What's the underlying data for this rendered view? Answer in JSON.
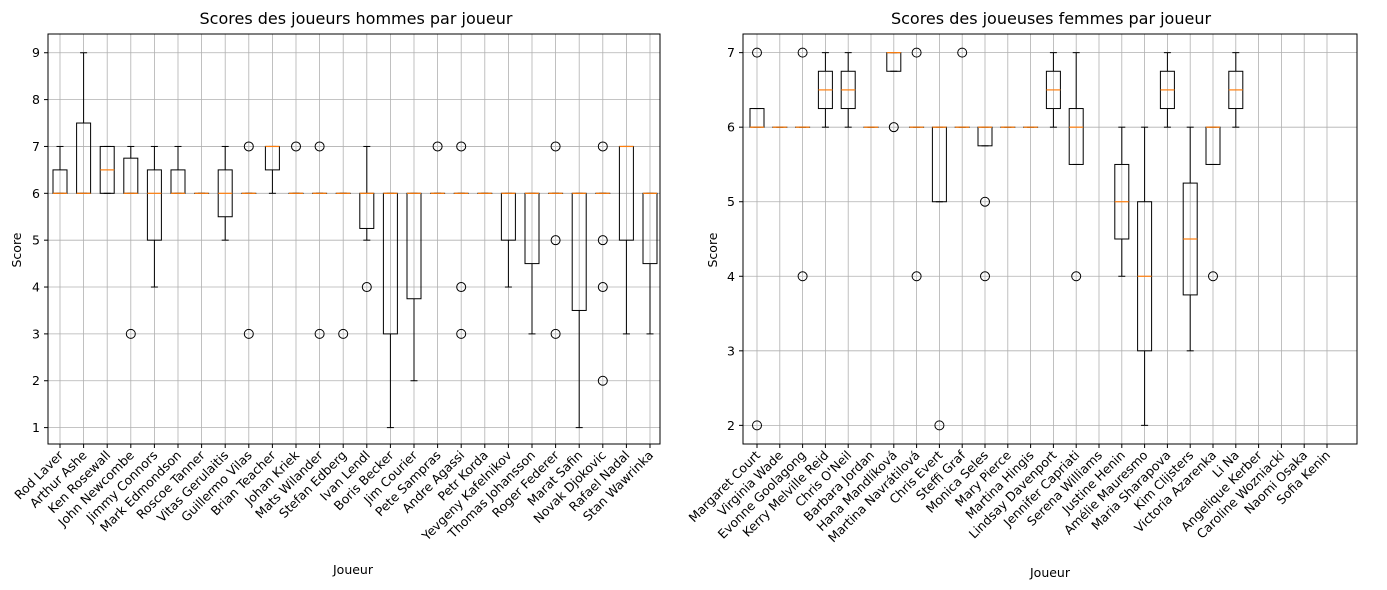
{
  "chart_data": [
    {
      "type": "box",
      "title": "Scores des joueurs hommes par joueur",
      "xlabel": "Joueur",
      "ylabel": "Score",
      "ylim": [
        0.65,
        9.4
      ],
      "yticks": [
        1,
        2,
        3,
        4,
        5,
        6,
        7,
        8,
        9
      ],
      "grid": true,
      "players": [
        {
          "name": "Rod Laver",
          "q1": 6,
          "med": 6,
          "q3": 6.5,
          "wlo": 6,
          "whi": 7,
          "fliers": []
        },
        {
          "name": "Arthur Ashe",
          "q1": 6,
          "med": 6,
          "q3": 7.5,
          "wlo": 6,
          "whi": 9,
          "fliers": []
        },
        {
          "name": "Ken Rosewall",
          "q1": 6,
          "med": 6.5,
          "q3": 7,
          "wlo": 6,
          "whi": 7,
          "fliers": []
        },
        {
          "name": "John Newcombe",
          "q1": 6,
          "med": 6,
          "q3": 6.75,
          "wlo": 6,
          "whi": 7,
          "fliers": [
            3
          ]
        },
        {
          "name": "Jimmy Connors",
          "q1": 5,
          "med": 6,
          "q3": 6.5,
          "wlo": 4,
          "whi": 7,
          "fliers": []
        },
        {
          "name": "Mark Edmondson",
          "q1": 6,
          "med": 6,
          "q3": 6.5,
          "wlo": 6,
          "whi": 7,
          "fliers": []
        },
        {
          "name": "Roscoe Tanner",
          "q1": 6,
          "med": 6,
          "q3": 6,
          "wlo": 6,
          "whi": 6,
          "fliers": []
        },
        {
          "name": "Vitas Gerulaitis",
          "q1": 5.5,
          "med": 6,
          "q3": 6.5,
          "wlo": 5,
          "whi": 7,
          "fliers": []
        },
        {
          "name": "Guillermo Vilas",
          "q1": 6,
          "med": 6,
          "q3": 6,
          "wlo": 6,
          "whi": 6,
          "fliers": [
            7,
            3
          ]
        },
        {
          "name": "Brian Teacher",
          "q1": 6.5,
          "med": 7,
          "q3": 7,
          "wlo": 6,
          "whi": 7,
          "fliers": []
        },
        {
          "name": "Johan Kriek",
          "q1": 6,
          "med": 6,
          "q3": 6,
          "wlo": 6,
          "whi": 6,
          "fliers": [
            7
          ]
        },
        {
          "name": "Mats Wilander",
          "q1": 6,
          "med": 6,
          "q3": 6,
          "wlo": 6,
          "whi": 6,
          "fliers": [
            7,
            3
          ]
        },
        {
          "name": "Stefan Edberg",
          "q1": 6,
          "med": 6,
          "q3": 6,
          "wlo": 6,
          "whi": 6,
          "fliers": [
            3
          ]
        },
        {
          "name": "Ivan Lendl",
          "q1": 5.25,
          "med": 6,
          "q3": 6,
          "wlo": 5,
          "whi": 7,
          "fliers": [
            4
          ]
        },
        {
          "name": "Boris Becker",
          "q1": 3,
          "med": 6,
          "q3": 6,
          "wlo": 1,
          "whi": 6,
          "fliers": []
        },
        {
          "name": "Jim Courier",
          "q1": 3.75,
          "med": 6,
          "q3": 6,
          "wlo": 2,
          "whi": 6,
          "fliers": []
        },
        {
          "name": "Pete Sampras",
          "q1": 6,
          "med": 6,
          "q3": 6,
          "wlo": 6,
          "whi": 6,
          "fliers": [
            7
          ]
        },
        {
          "name": "Andre Agassi",
          "q1": 6,
          "med": 6,
          "q3": 6,
          "wlo": 6,
          "whi": 6,
          "fliers": [
            7,
            4,
            3
          ]
        },
        {
          "name": "Petr Korda",
          "q1": 6,
          "med": 6,
          "q3": 6,
          "wlo": 6,
          "whi": 6,
          "fliers": []
        },
        {
          "name": "Yevgeny Kafelnikov",
          "q1": 5,
          "med": 6,
          "q3": 6,
          "wlo": 4,
          "whi": 6,
          "fliers": []
        },
        {
          "name": "Thomas Johansson",
          "q1": 4.5,
          "med": 6,
          "q3": 6,
          "wlo": 3,
          "whi": 6,
          "fliers": []
        },
        {
          "name": "Roger Federer",
          "q1": 6,
          "med": 6,
          "q3": 6,
          "wlo": 6,
          "whi": 6,
          "fliers": [
            7,
            5,
            3
          ]
        },
        {
          "name": "Marat Safin",
          "q1": 3.5,
          "med": 6,
          "q3": 6,
          "wlo": 1,
          "whi": 6,
          "fliers": []
        },
        {
          "name": "Novak Djokovic",
          "q1": 6,
          "med": 6,
          "q3": 6,
          "wlo": 6,
          "whi": 6,
          "fliers": [
            7,
            5,
            4,
            2
          ]
        },
        {
          "name": "Rafael Nadal",
          "q1": 5,
          "med": 7,
          "q3": 7,
          "wlo": 3,
          "whi": 7,
          "fliers": []
        },
        {
          "name": "Stan Wawrinka",
          "q1": 4.5,
          "med": 6,
          "q3": 6,
          "wlo": 3,
          "whi": 6,
          "fliers": []
        }
      ]
    },
    {
      "type": "box",
      "title": "Scores des joueuses femmes par joueur",
      "xlabel": "Joueur",
      "ylabel": "Score",
      "ylim": [
        1.75,
        7.25
      ],
      "yticks": [
        2,
        3,
        4,
        5,
        6,
        7
      ],
      "grid": true,
      "players": [
        {
          "name": "Margaret Court",
          "q1": 6,
          "med": 6,
          "q3": 6.25,
          "wlo": 6,
          "whi": 6.25,
          "fliers": [
            7,
            2
          ]
        },
        {
          "name": "Virginia Wade",
          "q1": 6,
          "med": 6,
          "q3": 6,
          "wlo": 6,
          "whi": 6,
          "fliers": []
        },
        {
          "name": "Evonne Goolagong",
          "q1": 6,
          "med": 6,
          "q3": 6,
          "wlo": 6,
          "whi": 6,
          "fliers": [
            7,
            4
          ]
        },
        {
          "name": "Kerry Melville Reid",
          "q1": 6.25,
          "med": 6.5,
          "q3": 6.75,
          "wlo": 6,
          "whi": 7,
          "fliers": []
        },
        {
          "name": "Chris O'Neil",
          "q1": 6.25,
          "med": 6.5,
          "q3": 6.75,
          "wlo": 6,
          "whi": 7,
          "fliers": []
        },
        {
          "name": "Barbara Jordan",
          "q1": 6,
          "med": 6,
          "q3": 6,
          "wlo": 6,
          "whi": 6,
          "fliers": []
        },
        {
          "name": "Hana Mandlíková",
          "q1": 6.75,
          "med": 7,
          "q3": 7,
          "wlo": 6.75,
          "whi": 7,
          "fliers": [
            6
          ]
        },
        {
          "name": "Martina Navrátilová",
          "q1": 6,
          "med": 6,
          "q3": 6,
          "wlo": 6,
          "whi": 6,
          "fliers": [
            7,
            4
          ]
        },
        {
          "name": "Chris Evert",
          "q1": 5,
          "med": 6,
          "q3": 6,
          "wlo": 5,
          "whi": 6,
          "fliers": [
            2
          ]
        },
        {
          "name": "Steffi Graf",
          "q1": 6,
          "med": 6,
          "q3": 6,
          "wlo": 6,
          "whi": 6,
          "fliers": [
            7
          ]
        },
        {
          "name": "Monica Seles",
          "q1": 5.75,
          "med": 6,
          "q3": 6,
          "wlo": 5.75,
          "whi": 6,
          "fliers": [
            5,
            4
          ]
        },
        {
          "name": "Mary Pierce",
          "q1": 6,
          "med": 6,
          "q3": 6,
          "wlo": 6,
          "whi": 6,
          "fliers": []
        },
        {
          "name": "Martina Hingis",
          "q1": 6,
          "med": 6,
          "q3": 6,
          "wlo": 6,
          "whi": 6,
          "fliers": []
        },
        {
          "name": "Lindsay Davenport",
          "q1": 6.25,
          "med": 6.5,
          "q3": 6.75,
          "wlo": 6,
          "whi": 7,
          "fliers": []
        },
        {
          "name": "Jennifer Capriati",
          "q1": 5.5,
          "med": 6,
          "q3": 6.25,
          "wlo": 5.5,
          "whi": 7,
          "fliers": [
            4
          ]
        },
        {
          "name": "Serena Williams",
          "q1": null,
          "med": null,
          "q3": null,
          "wlo": null,
          "whi": null,
          "fliers": []
        },
        {
          "name": "Justine Henin",
          "q1": 4.5,
          "med": 5,
          "q3": 5.5,
          "wlo": 4,
          "whi": 6,
          "fliers": []
        },
        {
          "name": "Amélie Mauresmo",
          "q1": 3,
          "med": 4,
          "q3": 5,
          "wlo": 2,
          "whi": 6,
          "fliers": []
        },
        {
          "name": "Maria Sharapova",
          "q1": 6.25,
          "med": 6.5,
          "q3": 6.75,
          "wlo": 6,
          "whi": 7,
          "fliers": []
        },
        {
          "name": "Kim Clijsters",
          "q1": 3.75,
          "med": 4.5,
          "q3": 5.25,
          "wlo": 3,
          "whi": 6,
          "fliers": []
        },
        {
          "name": "Victoria Azarenka",
          "q1": 5.5,
          "med": 6,
          "q3": 6,
          "wlo": 5.5,
          "whi": 6,
          "fliers": [
            4
          ]
        },
        {
          "name": "Li Na",
          "q1": 6.25,
          "med": 6.5,
          "q3": 6.75,
          "wlo": 6,
          "whi": 7,
          "fliers": []
        },
        {
          "name": "Angelique Kerber",
          "q1": null,
          "med": null,
          "q3": null,
          "wlo": null,
          "whi": null,
          "fliers": []
        },
        {
          "name": "Caroline Wozniacki",
          "q1": null,
          "med": null,
          "q3": null,
          "wlo": null,
          "whi": null,
          "fliers": []
        },
        {
          "name": "Naomi Osaka",
          "q1": null,
          "med": null,
          "q3": null,
          "wlo": null,
          "whi": null,
          "fliers": []
        },
        {
          "name": "Sofia Kenin",
          "q1": null,
          "med": null,
          "q3": null,
          "wlo": null,
          "whi": null,
          "fliers": []
        }
      ]
    }
  ]
}
